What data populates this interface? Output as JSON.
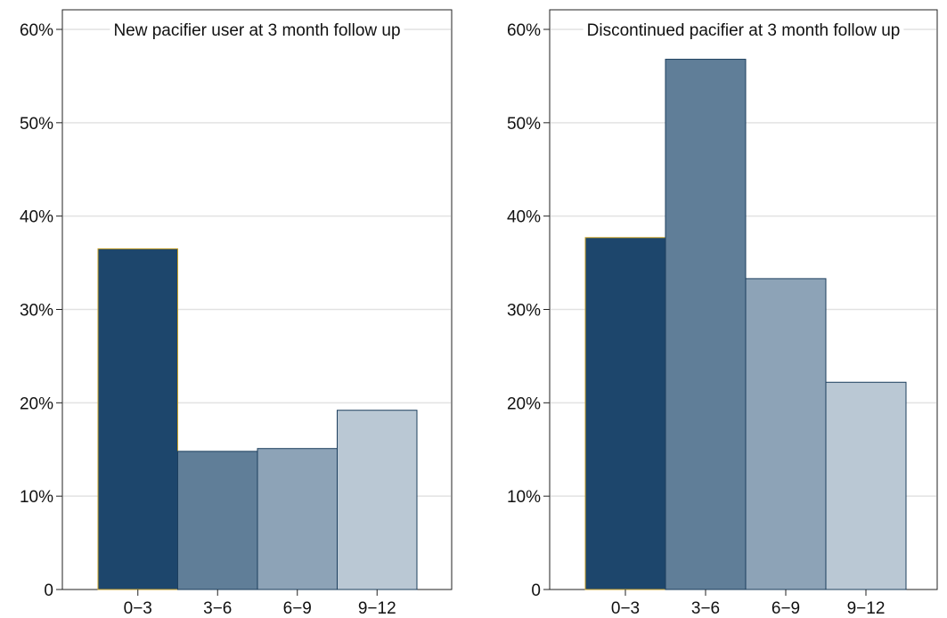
{
  "chart_data": [
    {
      "type": "bar",
      "title": "New pacifier user at 3 month follow up",
      "categories": [
        "0−3",
        "3−6",
        "6−9",
        "9−12"
      ],
      "values": [
        36.5,
        14.8,
        15.1,
        19.2
      ],
      "ylim": [
        0,
        60
      ],
      "yticks": [
        0,
        10,
        20,
        30,
        40,
        50,
        60
      ],
      "ytick_labels": [
        "0",
        "10%",
        "20%",
        "30%",
        "40%",
        "50%",
        "60%"
      ],
      "grid": true,
      "colors": [
        "#1d466c",
        "#607e98",
        "#8da3b7",
        "#bac8d4"
      ]
    },
    {
      "type": "bar",
      "title": "Discontinued pacifier at 3 month follow up",
      "categories": [
        "0−3",
        "3−6",
        "6−9",
        "9−12"
      ],
      "values": [
        37.7,
        56.8,
        33.3,
        22.2
      ],
      "ylim": [
        0,
        60
      ],
      "yticks": [
        0,
        10,
        20,
        30,
        40,
        50,
        60
      ],
      "ytick_labels": [
        "0",
        "10%",
        "20%",
        "30%",
        "40%",
        "50%",
        "60%"
      ],
      "grid": true,
      "colors": [
        "#1d466c",
        "#607e98",
        "#8da3b7",
        "#bac8d4"
      ]
    }
  ]
}
